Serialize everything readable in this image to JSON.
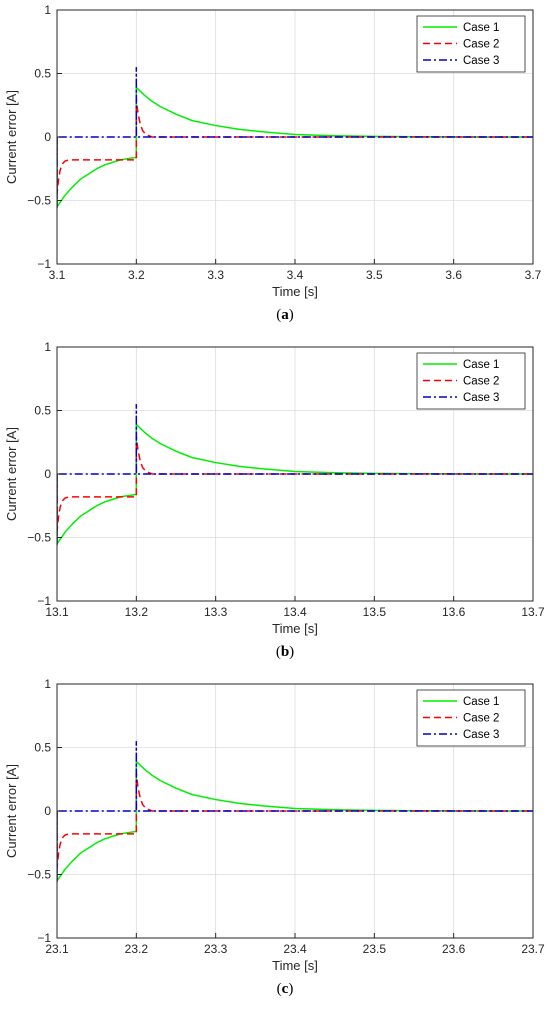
{
  "chart_data": [
    {
      "type": "line",
      "panel_label": "a",
      "xlabel": "Time [s]",
      "ylabel": "Current error [A]",
      "xlim": [
        3.1,
        3.7
      ],
      "ylim": [
        -1,
        1
      ],
      "xticks": [
        3.1,
        3.2,
        3.3,
        3.4,
        3.5,
        3.6,
        3.7
      ],
      "xtick_labels": [
        "3.1",
        "3.2",
        "3.3",
        "3.4",
        "3.5",
        "3.6",
        "3.7"
      ],
      "yticks": [
        -1,
        -0.5,
        0,
        0.5,
        1
      ],
      "ytick_labels": [
        "−1",
        "−0.5",
        "0",
        "0.5",
        "1"
      ],
      "grid": true,
      "legend_position": "top-right",
      "series": [
        {
          "name": "Case 1",
          "color": "#00ee00",
          "style": "solid",
          "x": [
            3.1,
            3.1,
            3.11,
            3.12,
            3.13,
            3.14,
            3.15,
            3.16,
            3.17,
            3.18,
            3.19,
            3.2,
            3.2,
            3.21,
            3.22,
            3.23,
            3.25,
            3.27,
            3.3,
            3.33,
            3.36,
            3.4,
            3.45,
            3.5,
            3.55,
            3.6,
            3.65,
            3.7
          ],
          "y": [
            0,
            -0.55,
            -0.46,
            -0.39,
            -0.33,
            -0.29,
            -0.25,
            -0.22,
            -0.2,
            -0.18,
            -0.17,
            -0.16,
            0.39,
            0.33,
            0.28,
            0.24,
            0.18,
            0.13,
            0.09,
            0.06,
            0.04,
            0.02,
            0.01,
            0.005,
            0.002,
            0.001,
            0,
            0
          ]
        },
        {
          "name": "Case 2",
          "color": "#ff0000",
          "style": "dashed",
          "x": [
            3.1,
            3.1,
            3.102,
            3.104,
            3.107,
            3.11,
            3.115,
            3.12,
            3.2,
            3.2,
            3.202,
            3.205,
            3.208,
            3.212,
            3.22,
            3.7
          ],
          "y": [
            0,
            -0.45,
            -0.33,
            -0.26,
            -0.21,
            -0.19,
            -0.18,
            -0.18,
            -0.18,
            0.3,
            0.19,
            0.1,
            0.05,
            0.02,
            0,
            0
          ]
        },
        {
          "name": "Case 3",
          "color": "#0000cc",
          "style": "dashdot",
          "x": [
            3.1,
            3.1,
            3.1,
            3.2,
            3.2,
            3.2,
            3.7
          ],
          "y": [
            0,
            -0.56,
            0,
            0,
            0.55,
            0,
            0
          ]
        }
      ]
    },
    {
      "type": "line",
      "panel_label": "b",
      "xlabel": "Time [s]",
      "ylabel": "Current error [A]",
      "xlim": [
        13.1,
        13.7
      ],
      "ylim": [
        -1,
        1
      ],
      "xticks": [
        13.1,
        13.2,
        13.3,
        13.4,
        13.5,
        13.6,
        13.7
      ],
      "xtick_labels": [
        "13.1",
        "13.2",
        "13.3",
        "13.4",
        "13.5",
        "13.6",
        "13.7"
      ],
      "yticks": [
        -1,
        -0.5,
        0,
        0.5,
        1
      ],
      "ytick_labels": [
        "−1",
        "−0.5",
        "0",
        "0.5",
        "1"
      ],
      "grid": true,
      "legend_position": "top-right",
      "series": [
        {
          "name": "Case 1",
          "color": "#00ee00",
          "style": "solid",
          "x": [
            13.1,
            13.1,
            13.11,
            13.12,
            13.13,
            13.14,
            13.15,
            13.16,
            13.17,
            13.18,
            13.19,
            13.2,
            13.2,
            13.21,
            13.22,
            13.23,
            13.25,
            13.27,
            13.3,
            13.33,
            13.36,
            13.4,
            13.45,
            13.5,
            13.55,
            13.6,
            13.65,
            13.7
          ],
          "y": [
            0,
            -0.55,
            -0.46,
            -0.39,
            -0.33,
            -0.29,
            -0.25,
            -0.22,
            -0.2,
            -0.18,
            -0.17,
            -0.16,
            0.39,
            0.33,
            0.28,
            0.24,
            0.18,
            0.13,
            0.09,
            0.06,
            0.04,
            0.02,
            0.01,
            0.005,
            0.002,
            0.001,
            0,
            0
          ]
        },
        {
          "name": "Case 2",
          "color": "#ff0000",
          "style": "dashed",
          "x": [
            13.1,
            13.1,
            13.102,
            13.104,
            13.107,
            13.11,
            13.115,
            13.12,
            13.2,
            13.2,
            13.202,
            13.205,
            13.208,
            13.212,
            13.22,
            13.7
          ],
          "y": [
            0,
            -0.45,
            -0.33,
            -0.26,
            -0.21,
            -0.19,
            -0.18,
            -0.18,
            -0.18,
            0.3,
            0.19,
            0.1,
            0.05,
            0.02,
            0,
            0
          ]
        },
        {
          "name": "Case 3",
          "color": "#0000cc",
          "style": "dashdot",
          "x": [
            13.1,
            13.1,
            13.1,
            13.2,
            13.2,
            13.2,
            13.7
          ],
          "y": [
            0,
            -0.56,
            0,
            0,
            0.55,
            0,
            0
          ]
        }
      ]
    },
    {
      "type": "line",
      "panel_label": "c",
      "xlabel": "Time [s]",
      "ylabel": "Current error [A]",
      "xlim": [
        23.1,
        23.7
      ],
      "ylim": [
        -1,
        1
      ],
      "xticks": [
        23.1,
        23.2,
        23.3,
        23.4,
        23.5,
        23.6,
        23.7
      ],
      "xtick_labels": [
        "23.1",
        "23.2",
        "23.3",
        "23.4",
        "23.5",
        "23.6",
        "23.7"
      ],
      "yticks": [
        -1,
        -0.5,
        0,
        0.5,
        1
      ],
      "ytick_labels": [
        "−1",
        "−0.5",
        "0",
        "0.5",
        "1"
      ],
      "grid": true,
      "legend_position": "top-right",
      "series": [
        {
          "name": "Case 1",
          "color": "#00ee00",
          "style": "solid",
          "x": [
            23.1,
            23.1,
            23.11,
            23.12,
            23.13,
            23.14,
            23.15,
            23.16,
            23.17,
            23.18,
            23.19,
            23.2,
            23.2,
            23.21,
            23.22,
            23.23,
            23.25,
            23.27,
            23.3,
            23.33,
            23.36,
            23.4,
            23.45,
            23.5,
            23.55,
            23.6,
            23.65,
            23.7
          ],
          "y": [
            0,
            -0.55,
            -0.46,
            -0.39,
            -0.33,
            -0.29,
            -0.25,
            -0.22,
            -0.2,
            -0.18,
            -0.17,
            -0.16,
            0.39,
            0.33,
            0.28,
            0.24,
            0.18,
            0.13,
            0.09,
            0.06,
            0.04,
            0.02,
            0.01,
            0.005,
            0.002,
            0.001,
            0,
            0
          ]
        },
        {
          "name": "Case 2",
          "color": "#ff0000",
          "style": "dashed",
          "x": [
            23.1,
            23.1,
            23.102,
            23.104,
            23.107,
            23.11,
            23.115,
            23.12,
            23.2,
            23.2,
            23.202,
            23.205,
            23.208,
            23.212,
            23.22,
            23.7
          ],
          "y": [
            0,
            -0.45,
            -0.33,
            -0.26,
            -0.21,
            -0.19,
            -0.18,
            -0.18,
            -0.18,
            0.3,
            0.19,
            0.1,
            0.05,
            0.02,
            0,
            0
          ]
        },
        {
          "name": "Case 3",
          "color": "#0000cc",
          "style": "dashdot",
          "x": [
            23.1,
            23.1,
            23.1,
            23.2,
            23.2,
            23.2,
            23.7
          ],
          "y": [
            0,
            -0.56,
            0,
            0,
            0.55,
            0,
            0
          ]
        }
      ]
    }
  ]
}
